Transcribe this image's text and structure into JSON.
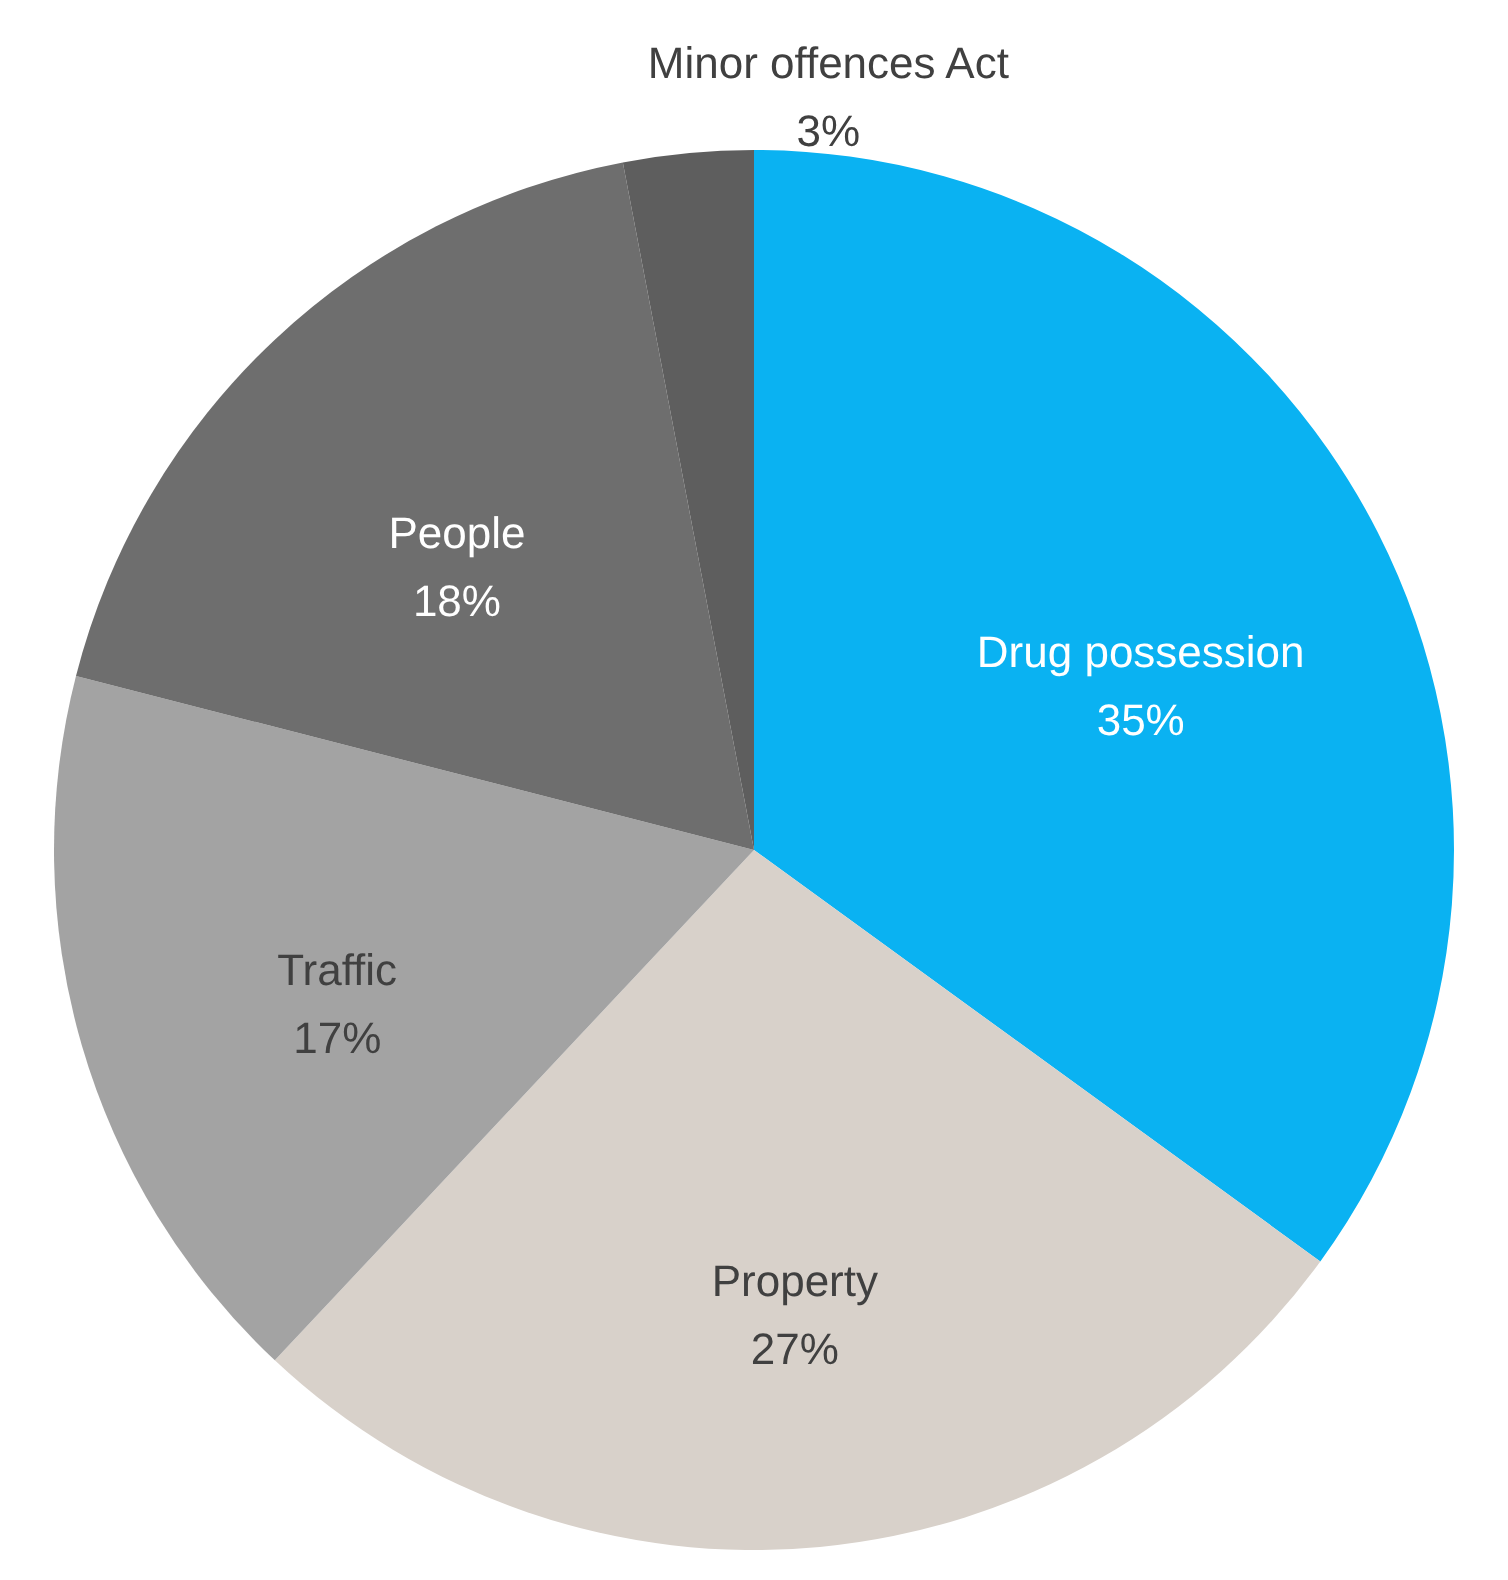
{
  "chart_data": {
    "type": "pie",
    "categories": [
      "Drug possession",
      "Property",
      "Traffic",
      "People",
      "Minor offences Act"
    ],
    "values": [
      35,
      27,
      17,
      18,
      3
    ],
    "value_labels": [
      "35%",
      "27%",
      "17%",
      "18%",
      "3%"
    ],
    "colors": [
      "#0ab2f2",
      "#d8d1ca",
      "#a3a3a3",
      "#6e6e6e",
      "#5e5e5e"
    ]
  }
}
